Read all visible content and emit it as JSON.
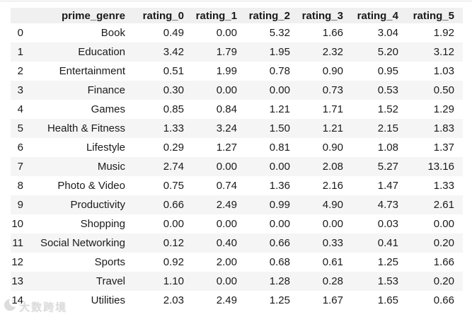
{
  "colors": {
    "header_bg": "#f0f0f0",
    "row_alt_bg": "#f5f5f5",
    "text": "#1a1a1a",
    "top_line": "#e3e3e3",
    "watermark": "#dcdcdc"
  },
  "table": {
    "header": [
      "",
      "prime_genre",
      "rating_0",
      "rating_1",
      "rating_2",
      "rating_3",
      "rating_4",
      "rating_5"
    ],
    "rows": [
      [
        "0",
        "Book",
        "0.49",
        "0.00",
        "5.32",
        "1.66",
        "3.04",
        "1.92"
      ],
      [
        "1",
        "Education",
        "3.42",
        "1.79",
        "1.95",
        "2.32",
        "5.20",
        "3.12"
      ],
      [
        "2",
        "Entertainment",
        "0.51",
        "1.99",
        "0.78",
        "0.90",
        "0.95",
        "1.03"
      ],
      [
        "3",
        "Finance",
        "0.30",
        "0.00",
        "0.00",
        "0.73",
        "0.53",
        "0.50"
      ],
      [
        "4",
        "Games",
        "0.85",
        "0.84",
        "1.21",
        "1.71",
        "1.52",
        "1.29"
      ],
      [
        "5",
        "Health & Fitness",
        "1.33",
        "3.24",
        "1.50",
        "1.21",
        "2.15",
        "1.83"
      ],
      [
        "6",
        "Lifestyle",
        "0.29",
        "1.27",
        "0.81",
        "0.90",
        "1.08",
        "1.37"
      ],
      [
        "7",
        "Music",
        "2.74",
        "0.00",
        "0.00",
        "2.08",
        "5.27",
        "13.16"
      ],
      [
        "8",
        "Photo & Video",
        "0.75",
        "0.74",
        "1.36",
        "2.16",
        "1.47",
        "1.33"
      ],
      [
        "9",
        "Productivity",
        "0.66",
        "2.49",
        "0.99",
        "4.90",
        "4.73",
        "2.61"
      ],
      [
        "10",
        "Shopping",
        "0.00",
        "0.00",
        "0.00",
        "0.00",
        "0.03",
        "0.00"
      ],
      [
        "11",
        "Social Networking",
        "0.12",
        "0.40",
        "0.66",
        "0.33",
        "0.41",
        "0.20"
      ],
      [
        "12",
        "Sports",
        "0.92",
        "2.00",
        "0.68",
        "0.61",
        "1.25",
        "1.66"
      ],
      [
        "13",
        "Travel",
        "1.10",
        "0.00",
        "1.28",
        "0.28",
        "1.53",
        "0.20"
      ],
      [
        "14",
        "Utilities",
        "2.03",
        "2.49",
        "1.25",
        "1.67",
        "1.65",
        "0.66"
      ]
    ]
  },
  "chart_data": {
    "type": "table",
    "title": "",
    "columns": [
      "prime_genre",
      "rating_0",
      "rating_1",
      "rating_2",
      "rating_3",
      "rating_4",
      "rating_5"
    ],
    "index": [
      0,
      1,
      2,
      3,
      4,
      5,
      6,
      7,
      8,
      9,
      10,
      11,
      12,
      13,
      14
    ],
    "rows": [
      [
        "Book",
        0.49,
        0.0,
        5.32,
        1.66,
        3.04,
        1.92
      ],
      [
        "Education",
        3.42,
        1.79,
        1.95,
        2.32,
        5.2,
        3.12
      ],
      [
        "Entertainment",
        0.51,
        1.99,
        0.78,
        0.9,
        0.95,
        1.03
      ],
      [
        "Finance",
        0.3,
        0.0,
        0.0,
        0.73,
        0.53,
        0.5
      ],
      [
        "Games",
        0.85,
        0.84,
        1.21,
        1.71,
        1.52,
        1.29
      ],
      [
        "Health & Fitness",
        1.33,
        3.24,
        1.5,
        1.21,
        2.15,
        1.83
      ],
      [
        "Lifestyle",
        0.29,
        1.27,
        0.81,
        0.9,
        1.08,
        1.37
      ],
      [
        "Music",
        2.74,
        0.0,
        0.0,
        2.08,
        5.27,
        13.16
      ],
      [
        "Photo & Video",
        0.75,
        0.74,
        1.36,
        2.16,
        1.47,
        1.33
      ],
      [
        "Productivity",
        0.66,
        2.49,
        0.99,
        4.9,
        4.73,
        2.61
      ],
      [
        "Shopping",
        0.0,
        0.0,
        0.0,
        0.0,
        0.03,
        0.0
      ],
      [
        "Social Networking",
        0.12,
        0.4,
        0.66,
        0.33,
        0.41,
        0.2
      ],
      [
        "Sports",
        0.92,
        2.0,
        0.68,
        0.61,
        1.25,
        1.66
      ],
      [
        "Travel",
        1.1,
        0.0,
        1.28,
        0.28,
        1.53,
        0.2
      ],
      [
        "Utilities",
        2.03,
        2.49,
        1.25,
        1.67,
        1.65,
        0.66
      ]
    ]
  },
  "watermark": {
    "text": "大数跨境",
    "icon": "crescent-logo-icon"
  }
}
